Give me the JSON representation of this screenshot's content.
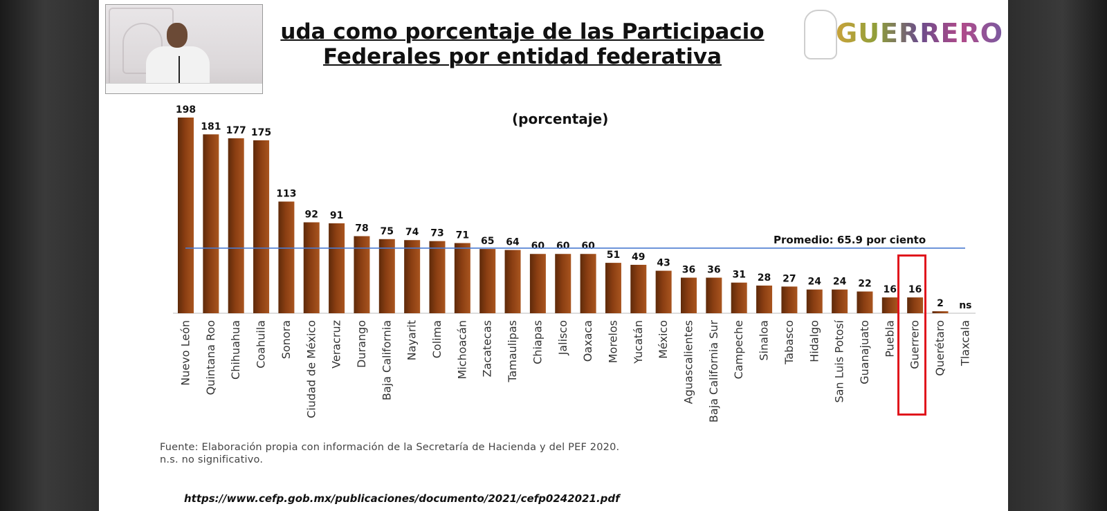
{
  "title": {
    "line1": "uda como porcentaje de las Participacio",
    "line2": "Federales por entidad federativa"
  },
  "logo": {
    "text": "GUERRERO"
  },
  "chart_data": {
    "type": "bar",
    "subtitle": "(porcentaje)",
    "categories": [
      "Nuevo León",
      "Quintana Roo",
      "Chihuahua",
      "Coahuila",
      "Sonora",
      "Ciudad de México",
      "Veracruz",
      "Durango",
      "Baja California",
      "Nayarit",
      "Colima",
      "Michoacán",
      "Zacatecas",
      "Tamaulipas",
      "Chiapas",
      "Jalisco",
      "Oaxaca",
      "Morelos",
      "Yucatán",
      "México",
      "Aguascalientes",
      "Baja California Sur",
      "Campeche",
      "Sinaloa",
      "Tabasco",
      "Hidalgo",
      "San Luis Potosí",
      "Guanajuato",
      "Puebla",
      "Guerrero",
      "Querétaro",
      "Tlaxcala"
    ],
    "values": [
      198,
      181,
      177,
      175,
      113,
      92,
      91,
      78,
      75,
      74,
      73,
      71,
      65,
      64,
      60,
      60,
      60,
      51,
      49,
      43,
      36,
      36,
      31,
      28,
      27,
      24,
      24,
      22,
      16,
      16,
      2,
      null
    ],
    "labels": [
      "198",
      "181",
      "177",
      "175",
      "113",
      "92",
      "91",
      "78",
      "75",
      "74",
      "73",
      "71",
      "65",
      "64",
      "60",
      "60",
      "60",
      "51",
      "49",
      "43",
      "36",
      "36",
      "31",
      "28",
      "27",
      "24",
      "24",
      "22",
      "16",
      "16",
      "2",
      "ns"
    ],
    "average": {
      "value": 65.9,
      "label": "Promedio: 65.9 por ciento",
      "color": "#4a7bd0"
    },
    "highlighted_category": "Guerrero",
    "highlight_color": "#e0141c",
    "bar_color": "#8a3e12",
    "ylim": [
      0,
      198
    ],
    "grid": false
  },
  "footer": {
    "source": "Fuente: Elaboración propia con información de la Secretaría de Hacienda y del PEF 2020.",
    "note": "n.s. no significativo.",
    "url": "https://www.cefp.gob.mx/publicaciones/documento/2021/cefp0242021.pdf"
  }
}
